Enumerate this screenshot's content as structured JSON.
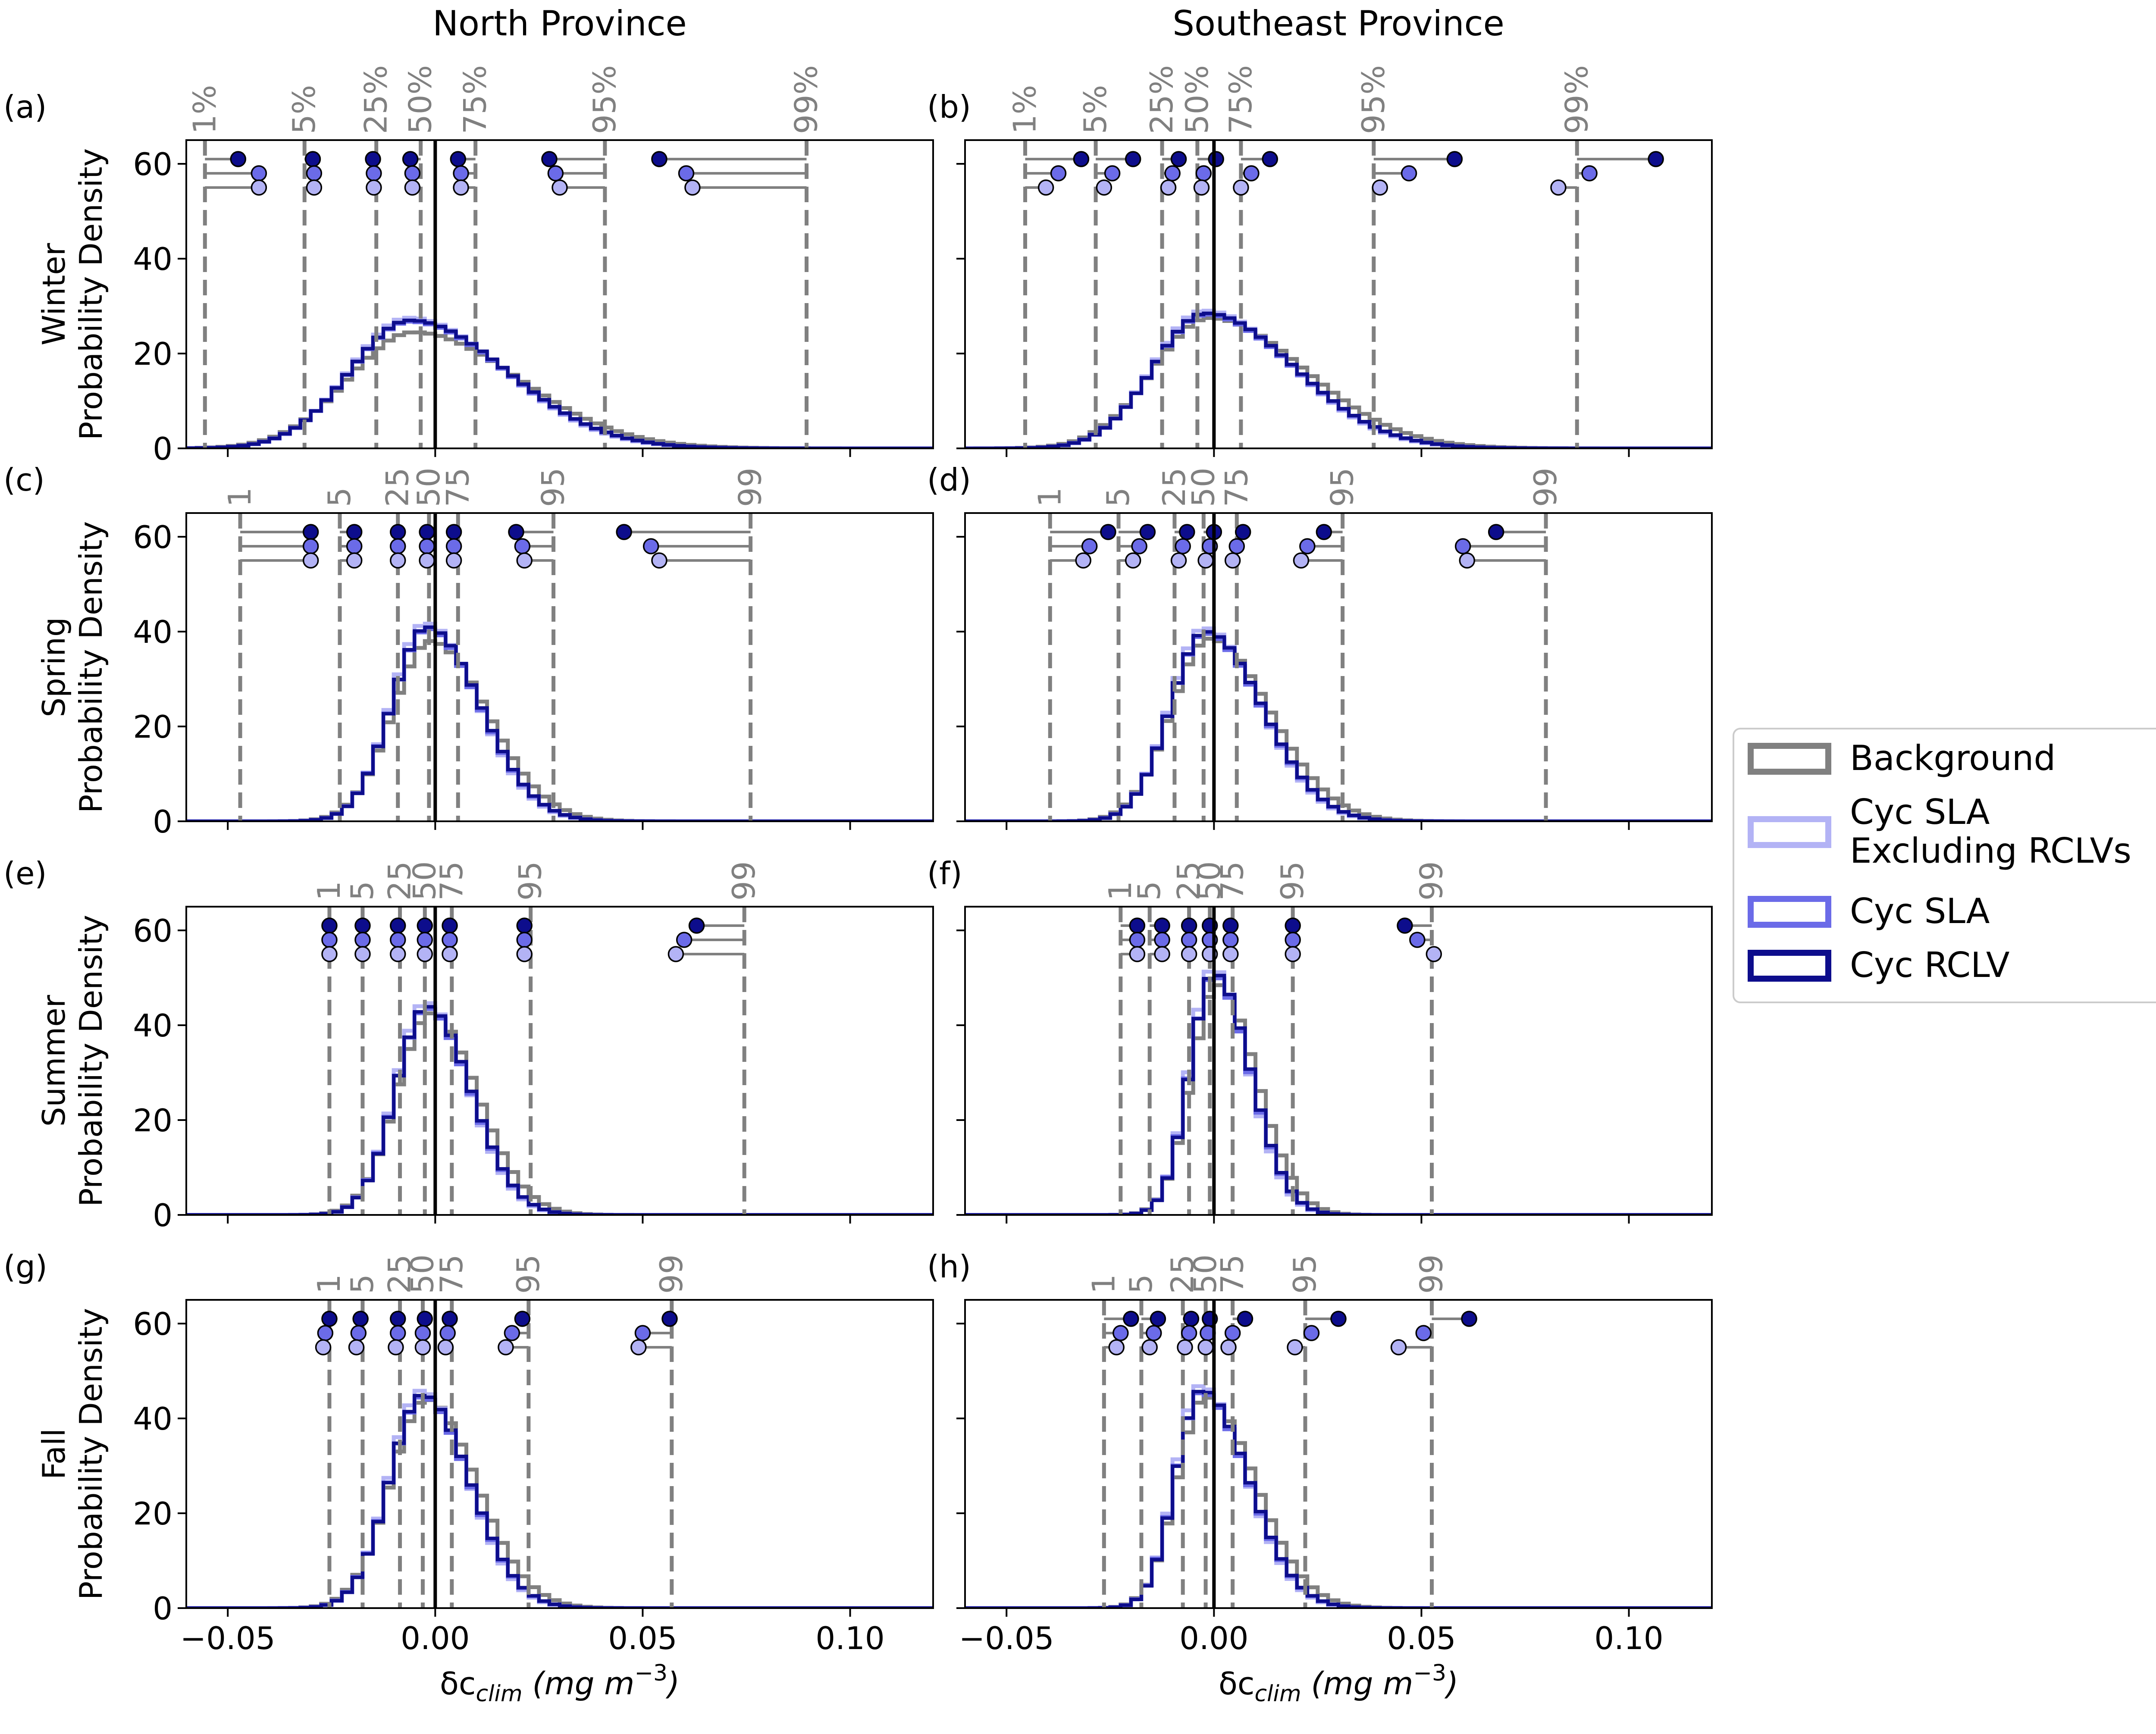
{
  "chart_data": {
    "type": "step-histogram",
    "columns": [
      "North Province",
      "Southeast Province"
    ],
    "rows": [
      "Winter",
      "Spring",
      "Summer",
      "Fall"
    ],
    "ylabel_suffix": "Probability Density",
    "xlabel_main": "δc",
    "xlabel_sub": "clim",
    "xlabel_units": "(mg  m",
    "xlabel_exp": "−3",
    "xlabel_close": ")",
    "xlim": [
      -0.06,
      0.12
    ],
    "ylim": [
      0,
      65
    ],
    "xticks": [
      -0.05,
      0.0,
      0.05,
      0.1
    ],
    "xtick_labels": [
      "−0.05",
      "0.00",
      "0.05",
      "0.10"
    ],
    "yticks": [
      0,
      20,
      40,
      60
    ],
    "ytick_labels": [
      "0",
      "20",
      "40",
      "60"
    ],
    "grid": false,
    "legend_position": "right",
    "legend": [
      {
        "label_lines": [
          "Background"
        ],
        "color": "#808080"
      },
      {
        "label_lines": [
          "Cyc SLA",
          " Excluding RCLVs"
        ],
        "color": "#b3b3f5"
      },
      {
        "label_lines": [
          "Cyc SLA"
        ],
        "color": "#6b6be8"
      },
      {
        "label_lines": [
          "Cyc RCLV"
        ],
        "color": "#0d0d8c"
      }
    ],
    "colors": {
      "background": "#808080",
      "cyc_sla_excluding_rclvs": "#b3b3f5",
      "cyc_sla": "#6b6be8",
      "cyc_rclv": "#0d0d8c",
      "zero_line": "#000000"
    },
    "marker_y_levels": {
      "cyc_rclv": 61,
      "cyc_sla": 58,
      "cyc_sla_excluding_rclvs": 55
    },
    "panels": [
      {
        "label": "(a)",
        "row": 0,
        "col": 0,
        "percentile_labels": [
          "1%",
          "5%",
          "25%",
          "50%",
          "75%",
          "95%",
          "99%"
        ],
        "background_percentiles": [
          -0.0555,
          -0.0315,
          -0.0142,
          -0.0035,
          0.0097,
          0.0409,
          0.0895
        ],
        "cyc_sla_excl": [
          -0.0425,
          -0.0292,
          -0.0148,
          -0.0055,
          0.0062,
          0.03,
          0.062
        ],
        "cyc_sla": [
          -0.0425,
          -0.0292,
          -0.0148,
          -0.0055,
          0.0062,
          0.029,
          0.0605
        ],
        "cyc_rclv": [
          -0.0475,
          -0.0295,
          -0.015,
          -0.006,
          0.0055,
          0.0275,
          0.054
        ],
        "hist_center": -0.006,
        "hist_peak": 27,
        "bg_peak": 24.5,
        "hist_width": 0.0145,
        "hist_skew": 1.6
      },
      {
        "label": "(b)",
        "row": 0,
        "col": 1,
        "percentile_labels": [
          "1%",
          "5%",
          "25%",
          "50%",
          "75%",
          "95%",
          "99%"
        ],
        "background_percentiles": [
          -0.0455,
          -0.0285,
          -0.0125,
          -0.004,
          0.0065,
          0.0385,
          0.0875
        ],
        "cyc_sla_excl": [
          -0.0405,
          -0.0265,
          -0.011,
          -0.003,
          0.0065,
          0.04,
          0.083
        ],
        "cyc_sla": [
          -0.0375,
          -0.0245,
          -0.01,
          -0.0025,
          0.009,
          0.047,
          0.0905
        ],
        "cyc_rclv": [
          -0.032,
          -0.0195,
          -0.0085,
          0.0005,
          0.0135,
          0.058,
          0.1065
        ],
        "hist_center": -0.002,
        "hist_peak": 28.5,
        "bg_peak": 27.5,
        "hist_width": 0.0125,
        "hist_skew": 1.7
      },
      {
        "label": "(c)",
        "row": 1,
        "col": 0,
        "percentile_labels": [
          "1",
          "5",
          "25",
          "50",
          "75",
          "95",
          "99"
        ],
        "background_percentiles": [
          -0.047,
          -0.023,
          -0.009,
          -0.0015,
          0.0055,
          0.0285,
          0.076
        ],
        "cyc_sla_excl": [
          -0.03,
          -0.0195,
          -0.009,
          -0.002,
          0.0045,
          0.0215,
          0.054
        ],
        "cyc_sla": [
          -0.03,
          -0.0195,
          -0.009,
          -0.002,
          0.0045,
          0.021,
          0.052
        ],
        "cyc_rclv": [
          -0.03,
          -0.0195,
          -0.009,
          -0.002,
          0.0045,
          0.0195,
          0.0455
        ],
        "hist_center": -0.002,
        "hist_peak": 41,
        "bg_peak": 38,
        "hist_width": 0.0085,
        "hist_skew": 1.5
      },
      {
        "label": "(d)",
        "row": 1,
        "col": 1,
        "percentile_labels": [
          "1",
          "5",
          "25",
          "50",
          "75",
          "95",
          "99"
        ],
        "background_percentiles": [
          -0.0395,
          -0.023,
          -0.0095,
          -0.0025,
          0.0055,
          0.031,
          0.08
        ],
        "cyc_sla_excl": [
          -0.0315,
          -0.0195,
          -0.0085,
          -0.002,
          0.0045,
          0.021,
          0.061
        ],
        "cyc_sla": [
          -0.03,
          -0.018,
          -0.0075,
          -0.001,
          0.0055,
          0.0225,
          0.06
        ],
        "cyc_rclv": [
          -0.0255,
          -0.016,
          -0.0065,
          0.0,
          0.007,
          0.0265,
          0.068
        ],
        "hist_center": -0.002,
        "hist_peak": 40,
        "bg_peak": 38.5,
        "hist_width": 0.0085,
        "hist_skew": 1.6
      },
      {
        "label": "(e)",
        "row": 2,
        "col": 0,
        "percentile_labels": [
          "1",
          "5",
          "25",
          "50",
          "75",
          "95",
          "99"
        ],
        "background_percentiles": [
          -0.0255,
          -0.0175,
          -0.0085,
          -0.0025,
          0.004,
          0.023,
          0.0745
        ],
        "cyc_sla_excl": [
          -0.0255,
          -0.0175,
          -0.009,
          -0.0025,
          0.0035,
          0.0215,
          0.058
        ],
        "cyc_sla": [
          -0.0255,
          -0.0175,
          -0.009,
          -0.0025,
          0.0035,
          0.0215,
          0.06
        ],
        "cyc_rclv": [
          -0.0255,
          -0.0175,
          -0.009,
          -0.0025,
          0.0035,
          0.0215,
          0.063
        ],
        "hist_center": -0.002,
        "hist_peak": 44,
        "bg_peak": 42.5,
        "hist_width": 0.0075,
        "hist_skew": 1.4
      },
      {
        "label": "(f)",
        "row": 2,
        "col": 1,
        "percentile_labels": [
          "1",
          "5",
          "25",
          "50",
          "75",
          "95",
          "99"
        ],
        "background_percentiles": [
          -0.0225,
          -0.0155,
          -0.006,
          -0.001,
          0.0045,
          0.019,
          0.0525
        ],
        "cyc_sla_excl": [
          -0.0185,
          -0.0125,
          -0.006,
          -0.001,
          0.004,
          0.019,
          0.053
        ],
        "cyc_sla": [
          -0.0185,
          -0.0125,
          -0.006,
          -0.001,
          0.004,
          0.019,
          0.049
        ],
        "cyc_rclv": [
          -0.0185,
          -0.0125,
          -0.006,
          -0.001,
          0.004,
          0.019,
          0.046
        ],
        "hist_center": 0.0,
        "hist_peak": 51,
        "bg_peak": 48.5,
        "hist_width": 0.0058,
        "hist_skew": 1.5
      },
      {
        "label": "(g)",
        "row": 3,
        "col": 0,
        "percentile_labels": [
          "1",
          "5",
          "25",
          "50",
          "75",
          "95",
          "99"
        ],
        "background_percentiles": [
          -0.0255,
          -0.0175,
          -0.0085,
          -0.003,
          0.004,
          0.0225,
          0.057
        ],
        "cyc_sla_excl": [
          -0.027,
          -0.019,
          -0.0095,
          -0.003,
          0.0025,
          0.017,
          0.049
        ],
        "cyc_sla": [
          -0.0265,
          -0.0185,
          -0.009,
          -0.003,
          0.003,
          0.0185,
          0.05
        ],
        "cyc_rclv": [
          -0.0255,
          -0.018,
          -0.009,
          -0.0025,
          0.0035,
          0.021,
          0.0565
        ],
        "hist_center": -0.003,
        "hist_peak": 45,
        "bg_peak": 44,
        "hist_width": 0.008,
        "hist_skew": 1.4
      },
      {
        "label": "(h)",
        "row": 3,
        "col": 1,
        "percentile_labels": [
          "1",
          "5",
          "25",
          "50",
          "75",
          "95",
          "99"
        ],
        "background_percentiles": [
          -0.0265,
          -0.0175,
          -0.0075,
          -0.002,
          0.0045,
          0.022,
          0.0525
        ],
        "cyc_sla_excl": [
          -0.0235,
          -0.0155,
          -0.007,
          -0.002,
          0.0035,
          0.0195,
          0.0445
        ],
        "cyc_sla": [
          -0.0225,
          -0.0145,
          -0.006,
          -0.0015,
          0.0045,
          0.0235,
          0.0505
        ],
        "cyc_rclv": [
          -0.02,
          -0.0135,
          -0.0055,
          -0.001,
          0.0075,
          0.03,
          0.0615
        ],
        "hist_center": -0.003,
        "hist_peak": 46,
        "bg_peak": 44.5,
        "hist_width": 0.0062,
        "hist_skew": 1.8
      }
    ]
  }
}
